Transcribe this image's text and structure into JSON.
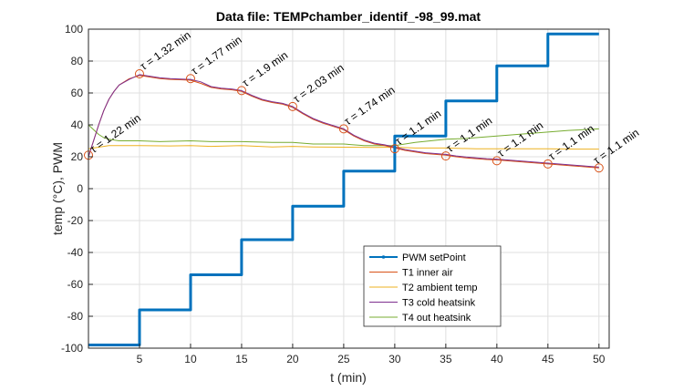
{
  "chart_data": {
    "type": "line",
    "title": "Data file: TEMPchamber_identif_-98_99.mat",
    "xlabel": "t (min)",
    "ylabel": "temp (°C), PWM",
    "xlim": [
      0,
      51
    ],
    "ylim": [
      -100,
      100
    ],
    "xticks": [
      5,
      10,
      15,
      20,
      25,
      30,
      35,
      40,
      45,
      50
    ],
    "yticks": [
      -100,
      -80,
      -60,
      -40,
      -20,
      0,
      20,
      40,
      60,
      80,
      100
    ],
    "grid": true,
    "legend_position": "bottom-center",
    "series": [
      {
        "name": "PWM setPoint",
        "color": "#0072BD",
        "style": "step",
        "x": [
          0,
          5,
          5,
          10,
          10,
          15,
          15,
          20,
          20,
          25,
          25,
          30,
          30,
          35,
          35,
          40,
          40,
          45,
          45,
          50
        ],
        "y": [
          -98,
          -98,
          -76,
          -76,
          -54,
          -54,
          -32,
          -32,
          -11,
          -11,
          11,
          11,
          33,
          33,
          55,
          55,
          77,
          77,
          97,
          97
        ]
      },
      {
        "name": "T1 inner air",
        "color": "#D95319",
        "x": [
          0,
          0.5,
          1,
          1.5,
          2,
          2.5,
          3,
          4,
          5,
          6,
          7,
          8,
          9,
          10,
          11,
          12,
          13,
          14,
          15,
          16,
          17,
          18,
          19,
          20,
          21,
          22,
          23,
          24,
          25,
          26,
          27,
          28,
          29,
          30,
          31,
          32,
          33,
          34,
          35,
          36,
          37,
          38,
          39,
          40,
          41,
          42,
          43,
          44,
          45,
          46,
          47,
          48,
          49,
          50
        ],
        "y": [
          20,
          30,
          40,
          49,
          56,
          61,
          65,
          69,
          71,
          70,
          69,
          68.5,
          68.3,
          68,
          66,
          63.5,
          62.5,
          62,
          61,
          58,
          55.5,
          54,
          53,
          51,
          47,
          43.5,
          41,
          39,
          37,
          33,
          30,
          28,
          27,
          25.5,
          24,
          23,
          22,
          21.5,
          21,
          20,
          19.3,
          18.8,
          18.3,
          18,
          17.5,
          17,
          16.5,
          16,
          15.5,
          15,
          14.5,
          14,
          13.5,
          13
        ]
      },
      {
        "name": "T2 ambient temp",
        "color": "#EDB120",
        "x": [
          0,
          2,
          5,
          8,
          10,
          12,
          15,
          18,
          20,
          22,
          25,
          28,
          30,
          32,
          35,
          38,
          40,
          42,
          45,
          48,
          50
        ],
        "y": [
          25,
          27,
          27,
          26.8,
          27,
          26.5,
          27,
          26.2,
          26.5,
          26.2,
          26,
          25.8,
          26,
          25.5,
          25.5,
          25,
          25,
          25,
          25,
          24.8,
          24.8
        ]
      },
      {
        "name": "T3 cold heatsink",
        "color": "#7E2F8E",
        "x": [
          0,
          0.5,
          1,
          1.5,
          2,
          2.5,
          3,
          4,
          5,
          6,
          7,
          8,
          9,
          10,
          11,
          12,
          13,
          14,
          15,
          16,
          17,
          18,
          19,
          20,
          21,
          22,
          23,
          24,
          25,
          26,
          27,
          28,
          29,
          30,
          31,
          32,
          33,
          34,
          35,
          36,
          37,
          38,
          39,
          40,
          41,
          42,
          43,
          44,
          45,
          46,
          47,
          48,
          49,
          50
        ],
        "y": [
          20,
          30,
          40,
          49,
          56,
          61,
          65,
          68.5,
          71.5,
          70.5,
          69.5,
          69,
          68.7,
          68.5,
          67,
          64,
          63,
          62.5,
          61.5,
          58.5,
          56,
          54.5,
          53.5,
          51.5,
          47.5,
          44,
          41.5,
          39.5,
          37.5,
          33.5,
          30.5,
          28.5,
          27.5,
          26,
          24.5,
          23.5,
          22.5,
          22,
          21.5,
          20.5,
          19.8,
          19.3,
          18.8,
          18.5,
          18,
          17.5,
          17,
          16.5,
          16,
          15.5,
          15,
          14.5,
          14,
          13.5
        ]
      },
      {
        "name": "T4 out heatsink",
        "color": "#77AC30",
        "x": [
          0,
          0.5,
          1,
          1.5,
          2,
          3,
          4,
          5,
          7,
          10,
          12,
          15,
          18,
          20,
          22,
          25,
          27,
          30,
          32,
          35,
          37,
          40,
          42,
          45,
          47,
          50
        ],
        "y": [
          40,
          37,
          34,
          32,
          31,
          30,
          30,
          30,
          29.5,
          30,
          29.5,
          29.5,
          29,
          29,
          28,
          28,
          27,
          27,
          29,
          31,
          31.5,
          33,
          34,
          35.5,
          36.5,
          37.5
        ]
      }
    ],
    "markers": {
      "name": "tau points",
      "color": "#D95319",
      "x": [
        0,
        5,
        10,
        15,
        20,
        25,
        30,
        35,
        40,
        45,
        50
      ],
      "y": [
        21,
        72,
        69,
        61.5,
        51.5,
        37.5,
        25,
        20.5,
        17.5,
        15.5,
        13
      ]
    },
    "annotations": [
      {
        "text": "τ = 1.22 min",
        "x": 0.3,
        "y": 21
      },
      {
        "text": "τ = 1.32 min",
        "x": 5.2,
        "y": 73
      },
      {
        "text": "τ = 1.77 min",
        "x": 10.2,
        "y": 70
      },
      {
        "text": "τ = 1.9 min",
        "x": 15.2,
        "y": 62.5
      },
      {
        "text": "τ = 2.03 min",
        "x": 20.2,
        "y": 52.5
      },
      {
        "text": "τ = 1.74 min",
        "x": 25.2,
        "y": 38.5
      },
      {
        "text": "τ = 1.1 min",
        "x": 30.2,
        "y": 26
      },
      {
        "text": "τ = 1.1 min",
        "x": 35.2,
        "y": 21.5
      },
      {
        "text": "τ = 1.1 min",
        "x": 40.2,
        "y": 18.5
      },
      {
        "text": "τ = 1.1 min",
        "x": 45.2,
        "y": 16.5
      },
      {
        "text": "τ = 1.1 min",
        "x": 49.6,
        "y": 14
      }
    ]
  }
}
